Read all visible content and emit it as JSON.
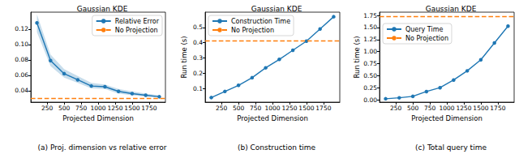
{
  "chart_data": [
    {
      "type": "line",
      "title": "Gaussian KDE",
      "caption": "(a) Proj. dimension vs relative error",
      "x_label": "Projected Dimension",
      "x": [
        100,
        300,
        500,
        700,
        900,
        1100,
        1300,
        1500,
        1700,
        1900
      ],
      "series": [
        {
          "name": "Relative Error",
          "color": "#1f77b4",
          "marker": "circle",
          "line_style": "solid",
          "values": [
            0.128,
            0.079,
            0.062,
            0.054,
            0.046,
            0.045,
            0.039,
            0.036,
            0.034,
            0.032
          ],
          "band_lower": [
            0.116,
            0.072,
            0.057,
            0.05,
            0.043,
            0.042,
            0.036,
            0.034,
            0.032,
            0.031
          ],
          "band_upper": [
            0.139,
            0.087,
            0.068,
            0.059,
            0.05,
            0.048,
            0.042,
            0.039,
            0.036,
            0.034
          ]
        },
        {
          "name": "No Projection",
          "type": "hline",
          "color": "#ff7f0e",
          "line_style": "dashed",
          "value": 0.031
        }
      ],
      "xlim": [
        10,
        1990
      ],
      "xticks": [
        250,
        500,
        750,
        1000,
        1250,
        1500,
        1750
      ],
      "ylim": [
        0.025,
        0.142
      ],
      "yticks": [
        0.04,
        0.06,
        0.08,
        {
          "value": 0.1,
          "label": "0.10"
        },
        0.12
      ],
      "legend": "upper right",
      "grid": false
    },
    {
      "type": "line",
      "title": "Gaussian KDE",
      "caption": "(b) Construction time",
      "x_label": "Projected Dimension",
      "y_label": "Run time (s)",
      "x": [
        100,
        300,
        500,
        700,
        900,
        1100,
        1300,
        1500,
        1700,
        1900
      ],
      "series": [
        {
          "name": "Construction Time",
          "color": "#1f77b4",
          "marker": "circle",
          "line_style": "solid",
          "values": [
            0.04,
            0.08,
            0.12,
            0.17,
            0.235,
            0.29,
            0.35,
            0.41,
            0.49,
            0.57
          ]
        },
        {
          "name": "No Projection",
          "type": "hline",
          "color": "#ff7f0e",
          "line_style": "dashed",
          "value": 0.415
        }
      ],
      "xlim": [
        10,
        1990
      ],
      "xticks": [
        250,
        500,
        750,
        1000,
        1250,
        1500,
        1750
      ],
      "ylim": [
        0.01,
        0.6
      ],
      "yticks": [
        0.1,
        0.2,
        0.3,
        0.4,
        0.5
      ],
      "legend": "upper left",
      "grid": false
    },
    {
      "type": "line",
      "title": "Gaussian KDE",
      "caption": "(c) Total query time",
      "x_label": "Projected Dimension",
      "y_label": "Run time (s)",
      "x": [
        100,
        300,
        500,
        700,
        900,
        1100,
        1300,
        1500,
        1700,
        1900
      ],
      "series": [
        {
          "name": "Query Time",
          "color": "#1f77b4",
          "marker": "circle",
          "line_style": "solid",
          "values": [
            0.02,
            0.04,
            0.07,
            0.17,
            0.25,
            0.41,
            0.6,
            0.83,
            1.18,
            1.53
          ]
        },
        {
          "name": "No Projection",
          "type": "hline",
          "color": "#ff7f0e",
          "line_style": "dashed",
          "value": 1.73
        }
      ],
      "xlim": [
        10,
        1990
      ],
      "xticks": [
        250,
        500,
        750,
        1000,
        1250,
        1500,
        1750
      ],
      "ylim": [
        -0.05,
        1.82
      ],
      "yticks": [
        {
          "value": 0,
          "label": "0.00"
        },
        0.25,
        {
          "value": 0.5,
          "label": "0.50"
        },
        0.75,
        {
          "value": 1,
          "label": "1.00"
        },
        1.25,
        {
          "value": 1.5,
          "label": "1.50"
        },
        1.75
      ],
      "legend": "upper left",
      "grid": false
    }
  ]
}
